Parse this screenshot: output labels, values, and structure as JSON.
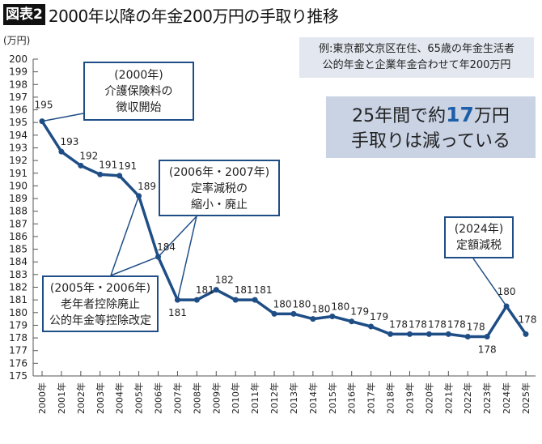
{
  "title": {
    "tag": "図表2",
    "text": "2000年以降の年金200万円の手取り推移"
  },
  "note": {
    "line1": "例:東京都文京区在住、65歳の年金生活者",
    "line2": "公的年金と企業年金合わせて年200万円"
  },
  "summary": {
    "pre": "25年間で約",
    "highlight": "17",
    "post": "万円",
    "line2": "手取りは減っている"
  },
  "annotations": [
    {
      "line1": "(2000年)",
      "line2": "介護保険料の",
      "line3": "徴収開始"
    },
    {
      "line1": "(2006年・2007年)",
      "line2": "定率減税の",
      "line3": "縮小・廃止"
    },
    {
      "line1": "(2005年・2006年)",
      "line2": "老年者控除廃止",
      "line3": "公的年金等控除改定"
    },
    {
      "line1": "(2024年)",
      "line2": "定額減税"
    }
  ],
  "colors": {
    "line": "#1f4e86",
    "highlight": "#1d5fa8",
    "note_bg": "#e3e7ef",
    "summary_bg": "#c9d3e4"
  },
  "chart_data": {
    "type": "line",
    "ylabel": "(万円)",
    "ylim": [
      175,
      200
    ],
    "yticks": [
      175,
      176,
      177,
      178,
      179,
      180,
      181,
      182,
      183,
      184,
      185,
      186,
      187,
      188,
      189,
      190,
      191,
      192,
      193,
      194,
      195,
      196,
      197,
      198,
      199,
      200
    ],
    "categories": [
      "2000年",
      "2001年",
      "2002年",
      "2003年",
      "2004年",
      "2005年",
      "2006年",
      "2007年",
      "2008年",
      "2009年",
      "2010年",
      "2011年",
      "2012年",
      "2013年",
      "2014年",
      "2015年",
      "2016年",
      "2017年",
      "2018年",
      "2019年",
      "2020年",
      "2021年",
      "2022年",
      "2023年",
      "2024年",
      "2025年"
    ],
    "values": [
      195.1,
      192.7,
      191.6,
      190.9,
      190.8,
      189.2,
      184.4,
      181.0,
      181.0,
      181.8,
      181.0,
      181.0,
      179.9,
      179.9,
      179.5,
      179.7,
      179.3,
      178.9,
      178.3,
      178.3,
      178.3,
      178.3,
      178.1,
      178.1,
      180.5,
      178.3
    ],
    "labels": [
      "195",
      "193",
      "192",
      "191",
      "191",
      "189",
      "184",
      "181",
      "181",
      "182",
      "181",
      "181",
      "180",
      "180",
      "180",
      "180",
      "179",
      "179",
      "178",
      "178",
      "178",
      "178",
      "178",
      "178",
      "180",
      "178"
    ],
    "grid": false,
    "legend": "none"
  }
}
